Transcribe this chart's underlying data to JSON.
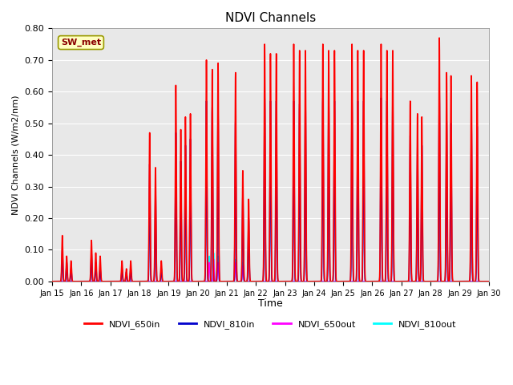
{
  "title": "NDVI Channels",
  "ylabel": "NDVI Channels (W/m2/nm)",
  "xlabel": "Time",
  "n_days": 15,
  "ylim": [
    0.0,
    0.8
  ],
  "yticks": [
    0.0,
    0.1,
    0.2,
    0.3,
    0.4,
    0.5,
    0.6,
    0.7,
    0.8
  ],
  "xtick_labels": [
    "Jan 15",
    "Jan 16",
    "Jan 17",
    "Jan 18",
    "Jan 19",
    "Jan 20",
    "Jan 21",
    "Jan 22",
    "Jan 23",
    "Jan 24",
    "Jan 25",
    "Jan 26",
    "Jan 27",
    "Jan 28",
    "Jan 29",
    "Jan 30"
  ],
  "annotation_text": "SW_met",
  "annotation_color": "#8B0000",
  "annotation_bg": "#FFFFC0",
  "bg_color": "#E8E8E8",
  "colors": {
    "NDVI_650in": "#FF0000",
    "NDVI_810in": "#0000CC",
    "NDVI_650out": "#FF00FF",
    "NDVI_810out": "#00FFFF"
  },
  "legend_labels": [
    "NDVI_650in",
    "NDVI_810in",
    "NDVI_650out",
    "NDVI_810out"
  ],
  "days_data": {
    "650in": [
      [
        [
          0.35,
          0.145
        ],
        [
          0.5,
          0.08
        ],
        [
          0.65,
          0.065
        ]
      ],
      [
        [
          0.35,
          0.13
        ],
        [
          0.5,
          0.09
        ],
        [
          0.65,
          0.08
        ]
      ],
      [
        [
          0.4,
          0.065
        ],
        [
          0.55,
          0.04
        ],
        [
          0.7,
          0.065
        ]
      ],
      [
        [
          0.35,
          0.47
        ],
        [
          0.55,
          0.36
        ],
        [
          0.75,
          0.065
        ]
      ],
      [
        [
          0.25,
          0.62
        ],
        [
          0.42,
          0.48
        ],
        [
          0.58,
          0.52
        ],
        [
          0.75,
          0.53
        ]
      ],
      [
        [
          0.3,
          0.7
        ],
        [
          0.5,
          0.67
        ],
        [
          0.7,
          0.69
        ]
      ],
      [
        [
          0.3,
          0.66
        ],
        [
          0.55,
          0.35
        ],
        [
          0.75,
          0.26
        ]
      ],
      [
        [
          0.3,
          0.75
        ],
        [
          0.5,
          0.72
        ],
        [
          0.7,
          0.72
        ]
      ],
      [
        [
          0.3,
          0.75
        ],
        [
          0.5,
          0.73
        ],
        [
          0.7,
          0.73
        ]
      ],
      [
        [
          0.3,
          0.75
        ],
        [
          0.5,
          0.73
        ],
        [
          0.7,
          0.73
        ]
      ],
      [
        [
          0.3,
          0.75
        ],
        [
          0.5,
          0.73
        ],
        [
          0.7,
          0.73
        ]
      ],
      [
        [
          0.3,
          0.75
        ],
        [
          0.5,
          0.73
        ],
        [
          0.7,
          0.73
        ]
      ],
      [
        [
          0.3,
          0.57
        ],
        [
          0.55,
          0.53
        ],
        [
          0.7,
          0.52
        ]
      ],
      [
        [
          0.3,
          0.77
        ],
        [
          0.55,
          0.66
        ],
        [
          0.7,
          0.65
        ]
      ],
      [
        [
          0.4,
          0.65
        ],
        [
          0.6,
          0.63
        ]
      ]
    ],
    "810in": [
      [
        [
          0.35,
          0.1
        ],
        [
          0.5,
          0.06
        ],
        [
          0.65,
          0.04
        ]
      ],
      [
        [
          0.35,
          0.09
        ],
        [
          0.5,
          0.06
        ],
        [
          0.65,
          0.04
        ]
      ],
      [
        [
          0.4,
          0.04
        ],
        [
          0.55,
          0.03
        ],
        [
          0.7,
          0.04
        ]
      ],
      [
        [
          0.35,
          0.37
        ],
        [
          0.55,
          0.29
        ],
        [
          0.75,
          0.04
        ]
      ],
      [
        [
          0.25,
          0.47
        ],
        [
          0.42,
          0.38
        ],
        [
          0.58,
          0.43
        ],
        [
          0.75,
          0.45
        ]
      ],
      [
        [
          0.3,
          0.57
        ],
        [
          0.5,
          0.55
        ],
        [
          0.7,
          0.54
        ]
      ],
      [
        [
          0.3,
          0.51
        ],
        [
          0.55,
          0.27
        ],
        [
          0.75,
          0.2
        ]
      ],
      [
        [
          0.3,
          0.58
        ],
        [
          0.5,
          0.57
        ],
        [
          0.7,
          0.57
        ]
      ],
      [
        [
          0.3,
          0.57
        ],
        [
          0.5,
          0.56
        ],
        [
          0.7,
          0.57
        ]
      ],
      [
        [
          0.3,
          0.58
        ],
        [
          0.5,
          0.57
        ],
        [
          0.7,
          0.57
        ]
      ],
      [
        [
          0.3,
          0.57
        ],
        [
          0.5,
          0.57
        ],
        [
          0.7,
          0.57
        ]
      ],
      [
        [
          0.3,
          0.58
        ],
        [
          0.5,
          0.57
        ],
        [
          0.7,
          0.57
        ]
      ],
      [
        [
          0.3,
          0.46
        ],
        [
          0.55,
          0.43
        ],
        [
          0.7,
          0.43
        ]
      ],
      [
        [
          0.3,
          0.6
        ],
        [
          0.55,
          0.51
        ],
        [
          0.7,
          0.5
        ]
      ],
      [
        [
          0.4,
          0.5
        ],
        [
          0.6,
          0.49
        ]
      ]
    ],
    "650out": [
      [],
      [],
      [],
      [],
      [],
      [
        [
          0.4,
          0.06
        ],
        [
          0.55,
          0.07
        ],
        [
          0.7,
          0.06
        ]
      ],
      [
        [
          0.3,
          0.06
        ],
        [
          0.55,
          0.05
        ]
      ],
      [],
      [],
      [],
      [],
      [],
      [],
      [],
      []
    ],
    "810out": [
      [],
      [],
      [],
      [],
      [],
      [
        [
          0.4,
          0.08
        ],
        [
          0.55,
          0.09
        ],
        [
          0.7,
          0.08
        ]
      ],
      [
        [
          0.3,
          0.07
        ],
        [
          0.55,
          0.06
        ]
      ],
      [],
      [],
      [],
      [],
      [],
      [],
      [],
      []
    ]
  }
}
